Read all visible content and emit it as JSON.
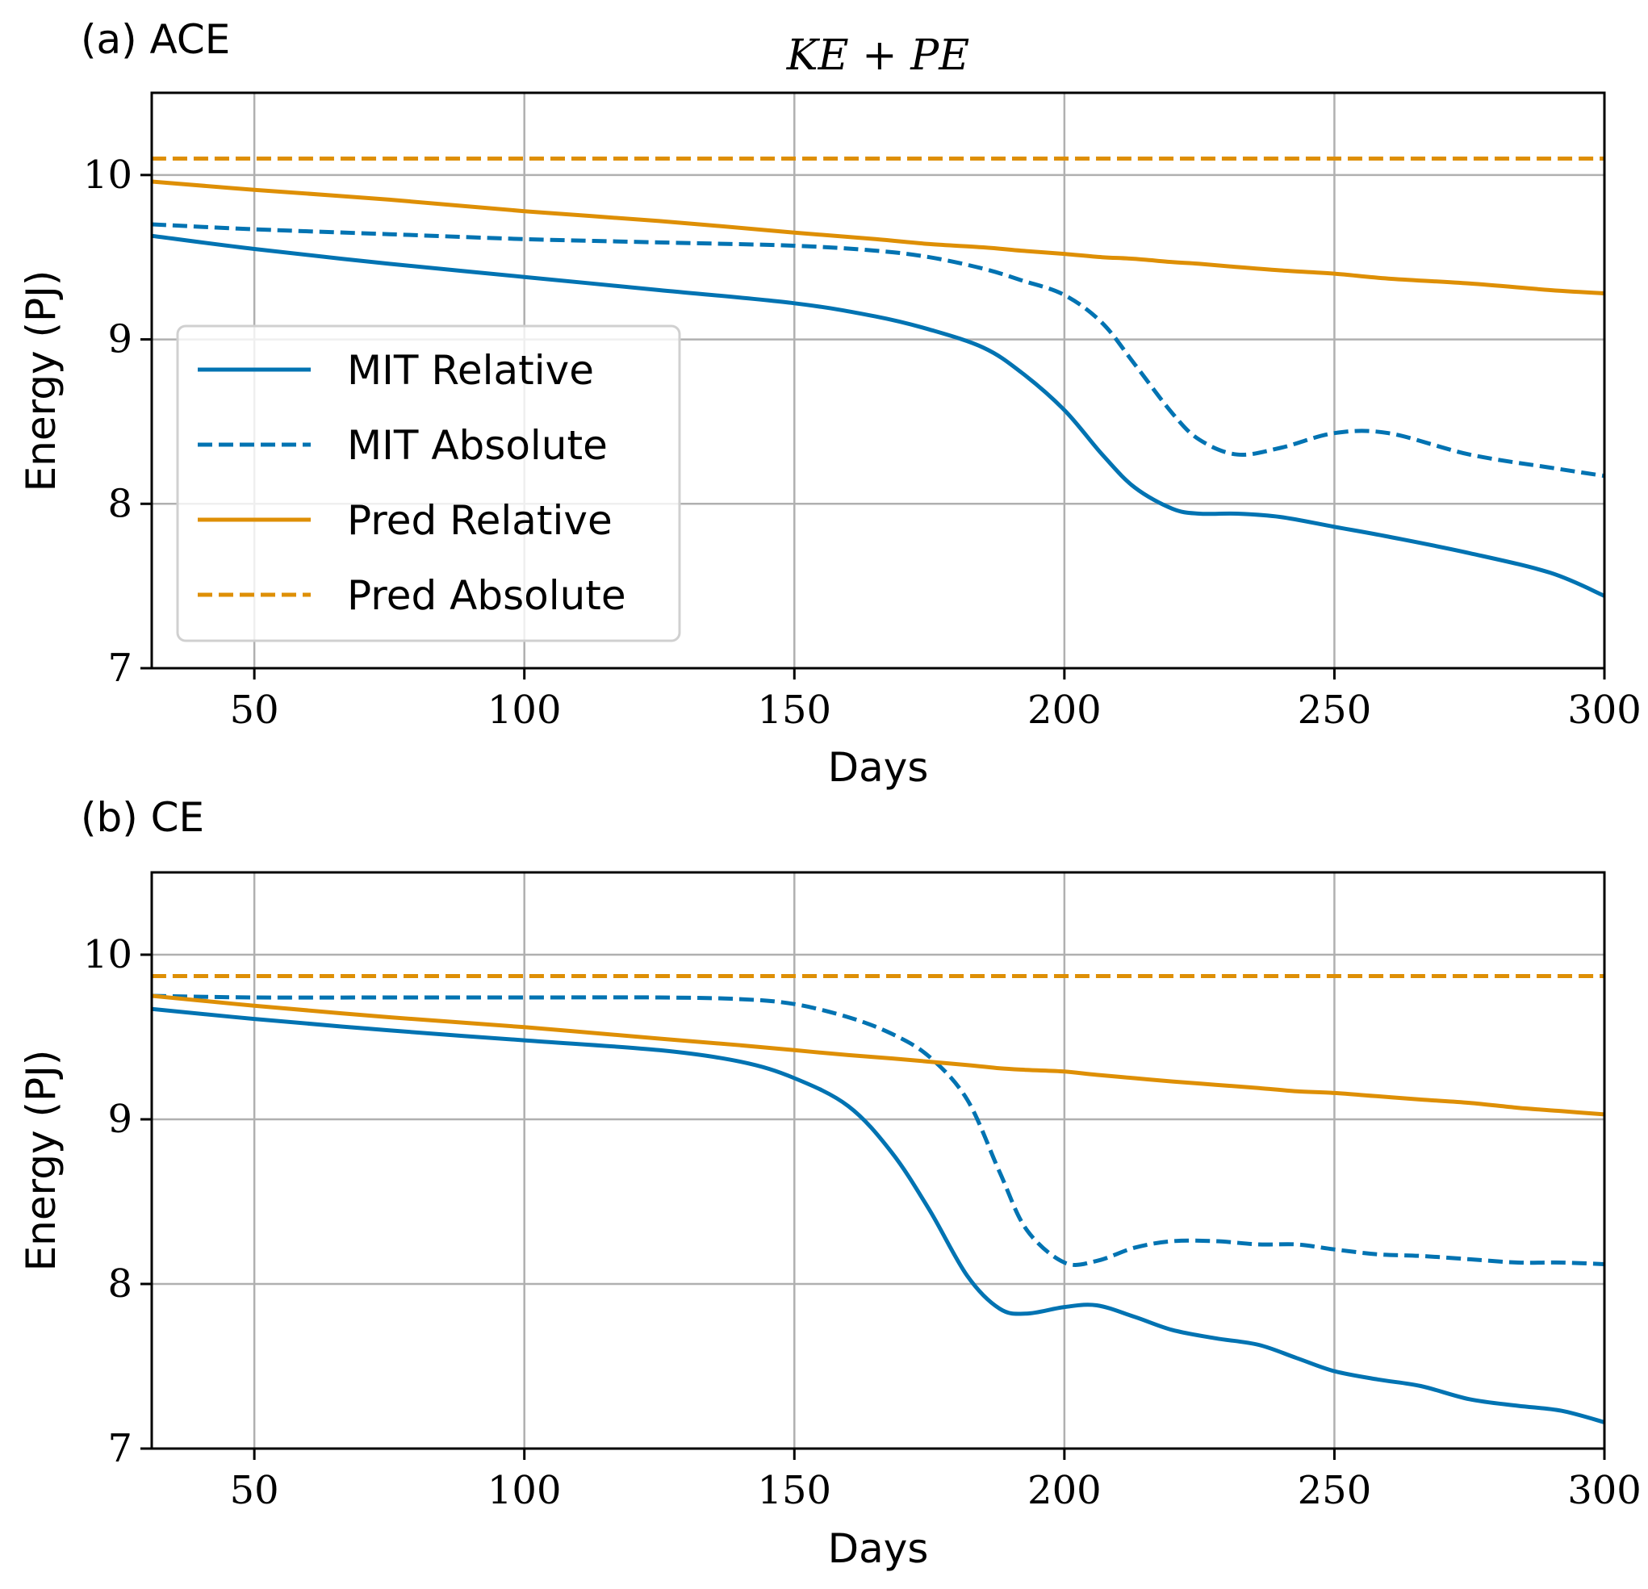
{
  "figure": {
    "suptitle": "KE + PE",
    "colors": {
      "mit": "#0173b2",
      "pred": "#de8f05",
      "grid": "#b0b0b0",
      "axis": "#000000"
    }
  },
  "chart_data": [
    {
      "type": "line",
      "panel_label": "(a) ACE",
      "title": "KE + PE",
      "xlabel": "Days",
      "ylabel": "Energy (PJ)",
      "xlim": [
        31,
        300
      ],
      "ylim": [
        7,
        10.5
      ],
      "xticks": [
        50,
        100,
        150,
        200,
        250,
        300
      ],
      "yticks": [
        7,
        8,
        9,
        10
      ],
      "grid": true,
      "legend": {
        "placement": "lower-left",
        "entries": [
          "MIT Relative",
          "MIT Absolute",
          "Pred Relative",
          "Pred Absolute"
        ]
      },
      "x": [
        31,
        50,
        75,
        100,
        125,
        150,
        165,
        175,
        185,
        192,
        200,
        207,
        213,
        220,
        225,
        232,
        240,
        250,
        260,
        275,
        290,
        300
      ],
      "series": [
        {
          "name": "MIT Relative",
          "style": "solid",
          "color": "mit",
          "values": [
            9.63,
            9.55,
            9.46,
            9.38,
            9.3,
            9.22,
            9.14,
            9.06,
            8.95,
            8.8,
            8.57,
            8.3,
            8.1,
            7.97,
            7.94,
            7.94,
            7.92,
            7.86,
            7.8,
            7.7,
            7.58,
            7.44
          ]
        },
        {
          "name": "MIT Absolute",
          "style": "dashed",
          "color": "mit",
          "values": [
            9.7,
            9.67,
            9.64,
            9.61,
            9.59,
            9.57,
            9.54,
            9.5,
            9.43,
            9.36,
            9.27,
            9.1,
            8.85,
            8.55,
            8.39,
            8.3,
            8.34,
            8.43,
            8.43,
            8.3,
            8.22,
            8.17
          ]
        },
        {
          "name": "Pred Relative",
          "style": "solid",
          "color": "pred",
          "values": [
            9.96,
            9.91,
            9.85,
            9.78,
            9.72,
            9.65,
            9.61,
            9.58,
            9.56,
            9.54,
            9.52,
            9.5,
            9.49,
            9.47,
            9.46,
            9.44,
            9.42,
            9.4,
            9.37,
            9.34,
            9.3,
            9.28
          ]
        },
        {
          "name": "Pred Absolute",
          "style": "dashed",
          "color": "pred",
          "values": [
            10.1,
            10.1,
            10.1,
            10.1,
            10.1,
            10.1,
            10.1,
            10.1,
            10.1,
            10.1,
            10.1,
            10.1,
            10.1,
            10.1,
            10.1,
            10.1,
            10.1,
            10.1,
            10.1,
            10.1,
            10.1,
            10.1
          ]
        }
      ]
    },
    {
      "type": "line",
      "panel_label": "(b) CE",
      "title": "",
      "xlabel": "Days",
      "ylabel": "Energy (PJ)",
      "xlim": [
        31,
        300
      ],
      "ylim": [
        7,
        10.5
      ],
      "xticks": [
        50,
        100,
        150,
        200,
        250,
        300
      ],
      "yticks": [
        7,
        8,
        9,
        10
      ],
      "grid": true,
      "legend": null,
      "x": [
        31,
        50,
        75,
        100,
        125,
        140,
        150,
        160,
        168,
        175,
        182,
        188,
        193,
        200,
        206,
        213,
        220,
        228,
        236,
        243,
        250,
        258,
        266,
        275,
        284,
        292,
        300
      ],
      "series": [
        {
          "name": "MIT Relative",
          "style": "solid",
          "color": "mit",
          "values": [
            9.67,
            9.61,
            9.54,
            9.48,
            9.42,
            9.35,
            9.25,
            9.08,
            8.8,
            8.45,
            8.05,
            7.85,
            7.82,
            7.86,
            7.87,
            7.8,
            7.72,
            7.67,
            7.63,
            7.55,
            7.47,
            7.42,
            7.38,
            7.3,
            7.26,
            7.23,
            7.16
          ]
        },
        {
          "name": "MIT Absolute",
          "style": "dashed",
          "color": "mit",
          "values": [
            9.75,
            9.74,
            9.74,
            9.74,
            9.74,
            9.73,
            9.7,
            9.62,
            9.52,
            9.38,
            9.12,
            8.68,
            8.33,
            8.13,
            8.14,
            8.22,
            8.26,
            8.26,
            8.24,
            8.24,
            8.21,
            8.18,
            8.17,
            8.15,
            8.13,
            8.13,
            8.12
          ]
        },
        {
          "name": "Pred Relative",
          "style": "solid",
          "color": "pred",
          "values": [
            9.75,
            9.69,
            9.62,
            9.56,
            9.49,
            9.45,
            9.42,
            9.39,
            9.37,
            9.35,
            9.33,
            9.31,
            9.3,
            9.29,
            9.27,
            9.25,
            9.23,
            9.21,
            9.19,
            9.17,
            9.16,
            9.14,
            9.12,
            9.1,
            9.07,
            9.05,
            9.03
          ]
        },
        {
          "name": "Pred Absolute",
          "style": "dashed",
          "color": "pred",
          "values": [
            9.87,
            9.87,
            9.87,
            9.87,
            9.87,
            9.87,
            9.87,
            9.87,
            9.87,
            9.87,
            9.87,
            9.87,
            9.87,
            9.87,
            9.87,
            9.87,
            9.87,
            9.87,
            9.87,
            9.87,
            9.87,
            9.87,
            9.87,
            9.87,
            9.87,
            9.87,
            9.87
          ]
        }
      ]
    }
  ]
}
